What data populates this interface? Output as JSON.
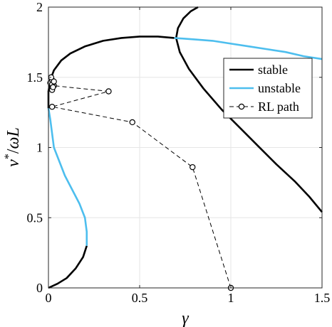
{
  "chart_data": {
    "type": "line",
    "title": "",
    "xlabel": "γ",
    "ylabel": "v*/ωL",
    "xlim": [
      0,
      1.5
    ],
    "ylim": [
      0,
      2
    ],
    "xticks": [
      0,
      0.5,
      1,
      1.5
    ],
    "xtick_labels": [
      "0",
      "0.5",
      "1",
      "1.5"
    ],
    "yticks": [
      0,
      0.5,
      1,
      1.5,
      2
    ],
    "ytick_labels": [
      "0",
      "0.5",
      "1",
      "1.5",
      "2"
    ],
    "grid": true,
    "legend_position": "upper-right",
    "series": [
      {
        "name": "stable",
        "color": "#000000",
        "style": "solid",
        "segments": [
          [
            [
              0.0,
              0.0
            ],
            [
              0.05,
              0.03
            ],
            [
              0.1,
              0.07
            ],
            [
              0.15,
              0.14
            ],
            [
              0.19,
              0.22
            ],
            [
              0.21,
              0.3
            ]
          ],
          [
            [
              0.0,
              1.28
            ],
            [
              0.0,
              1.4
            ],
            [
              0.01,
              1.48
            ],
            [
              0.03,
              1.55
            ],
            [
              0.07,
              1.62
            ],
            [
              0.12,
              1.67
            ],
            [
              0.2,
              1.72
            ],
            [
              0.3,
              1.76
            ],
            [
              0.4,
              1.78
            ],
            [
              0.5,
              1.79
            ],
            [
              0.6,
              1.79
            ],
            [
              0.69,
              1.78
            ]
          ],
          [
            [
              0.82,
              2.0
            ],
            [
              0.78,
              1.97
            ],
            [
              0.74,
              1.92
            ],
            [
              0.71,
              1.85
            ],
            [
              0.7,
              1.78
            ],
            [
              0.72,
              1.68
            ],
            [
              0.77,
              1.56
            ],
            [
              0.85,
              1.42
            ],
            [
              0.95,
              1.27
            ],
            [
              1.05,
              1.14
            ],
            [
              1.15,
              1.01
            ],
            [
              1.25,
              0.88
            ],
            [
              1.35,
              0.76
            ],
            [
              1.43,
              0.65
            ],
            [
              1.5,
              0.54
            ]
          ]
        ]
      },
      {
        "name": "unstable",
        "color": "#4DBEEE",
        "style": "solid",
        "segments": [
          [
            [
              0.21,
              0.3
            ],
            [
              0.21,
              0.4
            ],
            [
              0.2,
              0.5
            ],
            [
              0.17,
              0.6
            ],
            [
              0.13,
              0.7
            ],
            [
              0.09,
              0.8
            ],
            [
              0.06,
              0.9
            ],
            [
              0.03,
              1.0
            ],
            [
              0.02,
              1.1
            ],
            [
              0.01,
              1.2
            ],
            [
              0.0,
              1.28
            ]
          ],
          [
            [
              0.69,
              1.78
            ],
            [
              0.8,
              1.77
            ],
            [
              0.9,
              1.76
            ],
            [
              1.0,
              1.74
            ],
            [
              1.1,
              1.72
            ],
            [
              1.2,
              1.7
            ],
            [
              1.3,
              1.68
            ],
            [
              1.4,
              1.65
            ],
            [
              1.5,
              1.63
            ]
          ]
        ]
      },
      {
        "name": "RL path",
        "color": "#000000",
        "style": "dashed",
        "marker": "circle",
        "x": [
          1.0,
          0.79,
          0.46,
          0.02,
          0.33,
          0.03,
          0.01,
          0.02,
          0.02,
          0.015,
          0.02,
          0.03,
          0.025
        ],
        "y": [
          0.0,
          0.86,
          1.18,
          1.29,
          1.4,
          1.44,
          1.46,
          1.41,
          1.48,
          1.5,
          1.45,
          1.47,
          1.43
        ]
      }
    ]
  }
}
